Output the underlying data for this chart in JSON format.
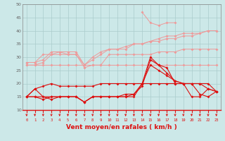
{
  "x": [
    0,
    1,
    2,
    3,
    4,
    5,
    6,
    7,
    8,
    9,
    10,
    11,
    12,
    13,
    14,
    15,
    16,
    17,
    18,
    19,
    20,
    21,
    22,
    23
  ],
  "line1": [
    27,
    27,
    27,
    27,
    27,
    27,
    27,
    27,
    27,
    27,
    27,
    27,
    27,
    27,
    27,
    27,
    27,
    27,
    27,
    27,
    27,
    27,
    27,
    27
  ],
  "line2": [
    27,
    27,
    28,
    31,
    32,
    31,
    31,
    26,
    27,
    27,
    31,
    31,
    31,
    31,
    31,
    31,
    32,
    32,
    32,
    33,
    33,
    33,
    33,
    33
  ],
  "line3": [
    28,
    28,
    29,
    32,
    32,
    32,
    32,
    27,
    29,
    31,
    33,
    33,
    33,
    35,
    35,
    36,
    36,
    37,
    37,
    38,
    38,
    39,
    40,
    40
  ],
  "line4": [
    28,
    28,
    31,
    31,
    31,
    31,
    31,
    27,
    30,
    32,
    33,
    33,
    34,
    35,
    35,
    36,
    37,
    38,
    38,
    39,
    39,
    39,
    40,
    40
  ],
  "line5_light": [
    null,
    null,
    null,
    null,
    null,
    null,
    null,
    null,
    null,
    null,
    null,
    null,
    null,
    null,
    47,
    43,
    42,
    43,
    43,
    null,
    null,
    null,
    null,
    null
  ],
  "line7": [
    15,
    18,
    19,
    20,
    19,
    19,
    19,
    19,
    19,
    20,
    20,
    20,
    20,
    20,
    20,
    20,
    20,
    20,
    20,
    20,
    20,
    20,
    20,
    17
  ],
  "line8": [
    15,
    18,
    15,
    15,
    15,
    15,
    15,
    13,
    15,
    15,
    15,
    15,
    15,
    15,
    20,
    27,
    25,
    23,
    21,
    20,
    20,
    20,
    18,
    17
  ],
  "line9": [
    15,
    15,
    15,
    14,
    15,
    15,
    15,
    13,
    15,
    15,
    15,
    15,
    15,
    16,
    20,
    30,
    27,
    24,
    21,
    20,
    20,
    16,
    15,
    17
  ],
  "line10": [
    15,
    15,
    14,
    15,
    15,
    15,
    15,
    13,
    15,
    15,
    15,
    15,
    16,
    16,
    19,
    29,
    27,
    26,
    20,
    20,
    15,
    15,
    18,
    17
  ],
  "bg_color": "#cce8e8",
  "grid_color": "#aacccc",
  "line_color_dark": "#dd1111",
  "line_color_light": "#ee9999",
  "xlabel": "Vent moyen/en rafales ( km/h )",
  "ylim": [
    10,
    50
  ],
  "xlim": [
    -0.5,
    23.5
  ],
  "yticks": [
    10,
    15,
    20,
    25,
    30,
    35,
    40,
    45,
    50
  ],
  "xticks": [
    0,
    1,
    2,
    3,
    4,
    5,
    6,
    7,
    8,
    9,
    10,
    11,
    12,
    13,
    14,
    15,
    16,
    17,
    18,
    19,
    20,
    21,
    22,
    23
  ]
}
